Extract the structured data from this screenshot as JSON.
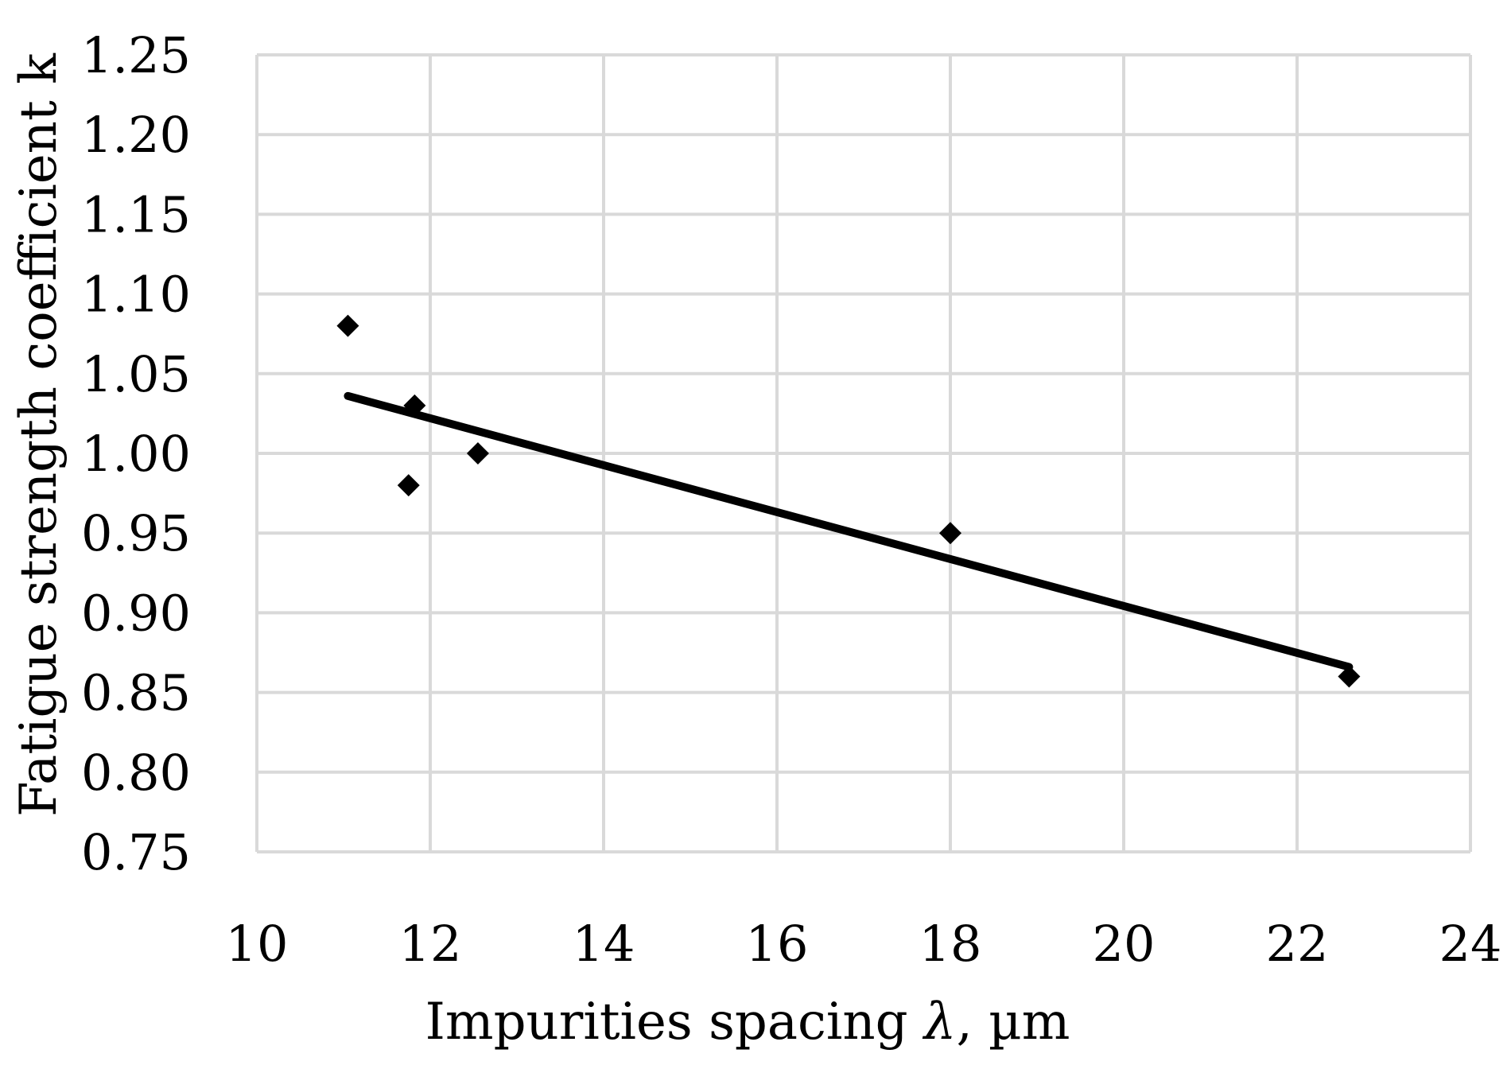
{
  "chart_data": {
    "type": "scatter",
    "xlabel_main": "Impurities spacing ",
    "xlabel_symbol": "λ",
    "xlabel_unit": ", µm",
    "ylabel": "Fatigue strength coefficient k",
    "xlim": [
      10,
      24
    ],
    "ylim": [
      0.75,
      1.25
    ],
    "x_ticks": [
      10,
      12,
      14,
      16,
      18,
      20,
      22,
      24
    ],
    "y_ticks": [
      0.75,
      0.8,
      0.85,
      0.9,
      0.95,
      1.0,
      1.05,
      1.1,
      1.15,
      1.2,
      1.25
    ],
    "x_tick_labels": [
      "10",
      "12",
      "14",
      "16",
      "18",
      "20",
      "22",
      "24"
    ],
    "y_tick_labels": [
      "0.75",
      "0.80",
      "0.85",
      "0.90",
      "0.95",
      "1.00",
      "1.05",
      "1.10",
      "1.15",
      "1.20",
      "1.25"
    ],
    "grid": true,
    "series": [
      {
        "marker": "diamond",
        "color": "#000000",
        "points": [
          {
            "x": 11.05,
            "y": 1.08
          },
          {
            "x": 11.75,
            "y": 0.98
          },
          {
            "x": 11.82,
            "y": 1.03
          },
          {
            "x": 12.55,
            "y": 1.0
          },
          {
            "x": 18.0,
            "y": 0.95
          },
          {
            "x": 22.6,
            "y": 0.86
          }
        ]
      }
    ],
    "trendline": {
      "type": "linear",
      "color": "#000000",
      "start": {
        "x": 11.05,
        "y": 1.036
      },
      "end": {
        "x": 22.6,
        "y": 0.866
      }
    }
  }
}
